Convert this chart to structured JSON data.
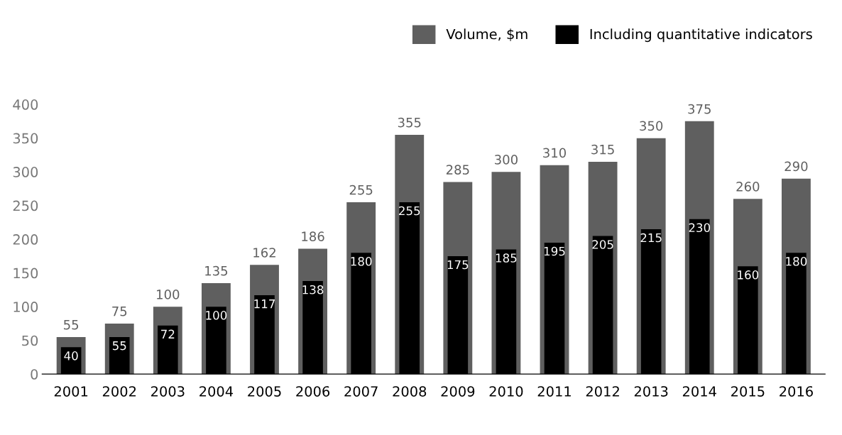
{
  "chart_data": {
    "type": "bar",
    "categories": [
      "2001",
      "2002",
      "2003",
      "2004",
      "2005",
      "2006",
      "2007",
      "2008",
      "2009",
      "2010",
      "2011",
      "2012",
      "2013",
      "2014",
      "2015",
      "2016"
    ],
    "series": [
      {
        "name": "Volume, $m",
        "color": "#5f5f5f",
        "values": [
          55,
          75,
          100,
          135,
          162,
          186,
          255,
          355,
          285,
          300,
          310,
          315,
          350,
          375,
          260,
          290
        ]
      },
      {
        "name": "Including quantitative indicators",
        "color": "#000000",
        "values": [
          40,
          55,
          72,
          100,
          117,
          138,
          180,
          255,
          175,
          185,
          195,
          205,
          215,
          230,
          160,
          180
        ]
      }
    ],
    "ylim": [
      0,
      400
    ],
    "yticks": [
      0,
      50,
      100,
      150,
      200,
      250,
      300,
      350,
      400
    ],
    "data_labels": true,
    "grid": false,
    "legend": "top right"
  }
}
